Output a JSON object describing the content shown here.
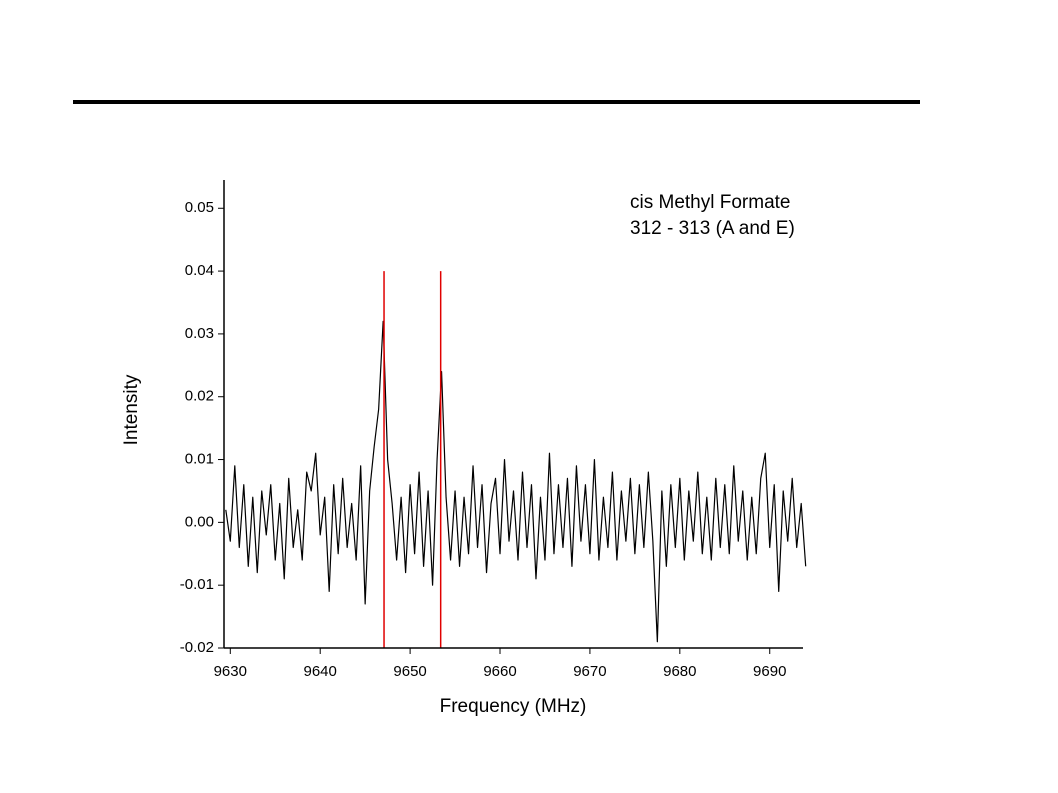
{
  "chart_data": {
    "type": "line",
    "annotation": [
      "cis Methyl Formate",
      "312 - 313 (A and E)"
    ],
    "xlabel": "Frequency (MHz)",
    "ylabel": "Intensity",
    "x": [
      9629.5,
      9630,
      9630.5,
      9631,
      9631.5,
      9632,
      9632.5,
      9633,
      9633.5,
      9634,
      9634.5,
      9635,
      9635.5,
      9636,
      9636.5,
      9637,
      9637.5,
      9638,
      9638.5,
      9639,
      9639.5,
      9640,
      9640.5,
      9641,
      9641.5,
      9642,
      9642.5,
      9643,
      9643.5,
      9644,
      9644.5,
      9645,
      9645.5,
      9646,
      9646.5,
      9647,
      9647.5,
      9648,
      9648.5,
      9649,
      9649.5,
      9650,
      9650.5,
      9651,
      9651.5,
      9652,
      9652.5,
      9653,
      9653.5,
      9654,
      9654.5,
      9655,
      9655.5,
      9656,
      9656.5,
      9657,
      9657.5,
      9658,
      9658.5,
      9659,
      9659.5,
      9660,
      9660.5,
      9661,
      9661.5,
      9662,
      9662.5,
      9663,
      9663.5,
      9664,
      9664.5,
      9665,
      9665.5,
      9666,
      9666.5,
      9667,
      9667.5,
      9668,
      9668.5,
      9669,
      9669.5,
      9670,
      9670.5,
      9671,
      9671.5,
      9672,
      9672.5,
      9673,
      9673.5,
      9674,
      9674.5,
      9675,
      9675.5,
      9676,
      9676.5,
      9677,
      9677.5,
      9678,
      9678.5,
      9679,
      9679.5,
      9680,
      9680.5,
      9681,
      9681.5,
      9682,
      9682.5,
      9683,
      9683.5,
      9684,
      9684.5,
      9685,
      9685.5,
      9686,
      9686.5,
      9687,
      9687.5,
      9688,
      9688.5,
      9689,
      9689.5,
      9690,
      9690.5,
      9691,
      9691.5,
      9692,
      9692.5,
      9693,
      9693.5,
      9694
    ],
    "series": [
      {
        "color": "#000000",
        "values": [
          0.002,
          -0.003,
          0.009,
          -0.004,
          0.006,
          -0.007,
          0.004,
          -0.008,
          0.005,
          -0.002,
          0.006,
          -0.006,
          0.003,
          -0.009,
          0.007,
          -0.004,
          0.002,
          -0.006,
          0.008,
          0.005,
          0.011,
          -0.002,
          0.004,
          -0.011,
          0.006,
          -0.005,
          0.007,
          -0.004,
          0.003,
          -0.006,
          0.009,
          -0.013,
          0.005,
          0.012,
          0.018,
          0.032,
          0.01,
          0.003,
          -0.006,
          0.004,
          -0.008,
          0.006,
          -0.005,
          0.008,
          -0.007,
          0.005,
          -0.01,
          0.01,
          0.024,
          0.004,
          -0.006,
          0.005,
          -0.007,
          0.004,
          -0.005,
          0.009,
          -0.004,
          0.006,
          -0.008,
          0.003,
          0.007,
          -0.005,
          0.01,
          -0.003,
          0.005,
          -0.006,
          0.008,
          -0.004,
          0.006,
          -0.009,
          0.004,
          -0.006,
          0.011,
          -0.005,
          0.006,
          -0.004,
          0.007,
          -0.007,
          0.009,
          -0.003,
          0.006,
          -0.005,
          0.01,
          -0.006,
          0.004,
          -0.004,
          0.008,
          -0.006,
          0.005,
          -0.003,
          0.007,
          -0.005,
          0.006,
          -0.004,
          0.008,
          -0.003,
          -0.019,
          0.005,
          -0.007,
          0.006,
          -0.004,
          0.007,
          -0.006,
          0.005,
          -0.003,
          0.008,
          -0.005,
          0.004,
          -0.006,
          0.007,
          -0.004,
          0.006,
          -0.005,
          0.009,
          -0.003,
          0.005,
          -0.006,
          0.004,
          -0.005,
          0.007,
          0.011,
          -0.004,
          0.006,
          -0.011,
          0.005,
          -0.003,
          0.007,
          -0.004,
          0.003,
          -0.007
        ]
      }
    ],
    "reference_lines": {
      "color": "#e00000",
      "x": [
        9647.1,
        9653.4
      ],
      "range": [
        -0.02,
        0.04
      ]
    },
    "xlim": [
      9629.3,
      9693.7
    ],
    "xticks": [
      9630,
      9640,
      9650,
      9660,
      9670,
      9680,
      9690
    ],
    "ylim": [
      -0.02,
      0.0545
    ],
    "yticks": [
      -0.02,
      -0.01,
      {
        "value": 0,
        "label": "0.00"
      },
      0.01,
      0.02,
      0.03,
      0.04,
      0.05
    ]
  }
}
